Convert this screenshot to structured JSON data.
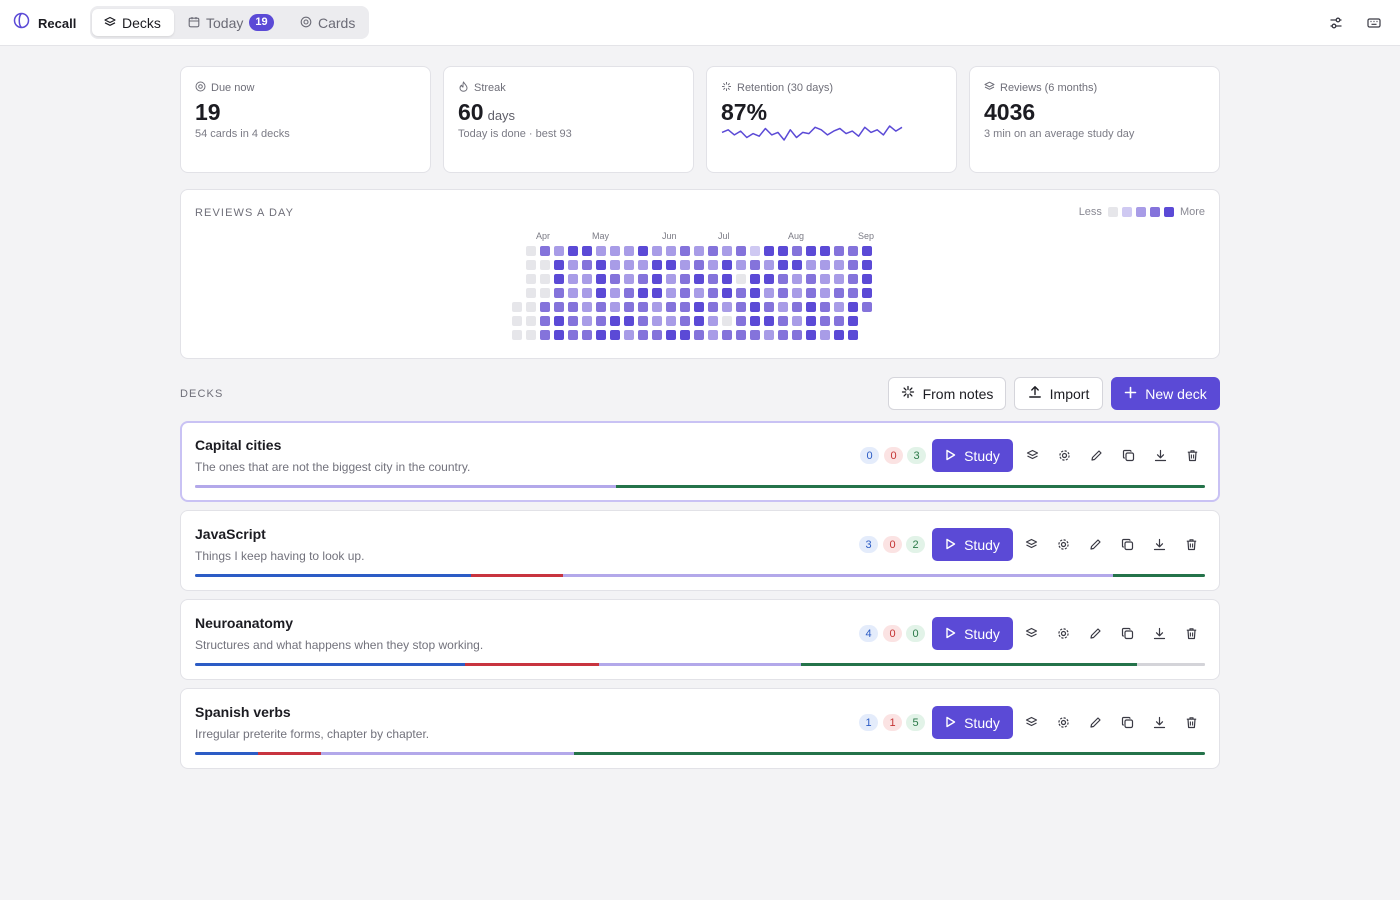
{
  "app": {
    "name": "Recall"
  },
  "tabs": [
    {
      "label": "Decks",
      "active": true
    },
    {
      "label": "Today",
      "badge": "19",
      "active": false
    },
    {
      "label": "Cards",
      "active": false
    }
  ],
  "stats": [
    {
      "icon": "target-icon",
      "label": "Due now",
      "value": "19",
      "unit": "",
      "sub": "54 cards in 4 decks"
    },
    {
      "icon": "flame-icon",
      "label": "Streak",
      "value": "60",
      "unit": "days",
      "sub": "Today is done · best 93"
    },
    {
      "icon": "sparkle-icon",
      "label": "Retention (30 days)",
      "value": "87%",
      "unit": "",
      "sub": "",
      "sparkline": [
        88,
        90,
        86,
        89,
        84,
        87,
        85,
        91,
        86,
        88,
        82,
        90,
        84,
        88,
        87,
        92,
        90,
        86,
        89,
        91,
        87,
        89,
        85,
        92,
        88,
        90,
        86,
        93,
        89,
        92
      ]
    },
    {
      "icon": "layers-icon",
      "label": "Reviews (6 months)",
      "value": "4036",
      "unit": "",
      "sub": "3 min on an average study day"
    }
  ],
  "activity": {
    "title": "REVIEWS A DAY",
    "legend_less": "Less",
    "legend_more": "More",
    "months": [
      "Apr",
      "May",
      "Jun",
      "Jul",
      "Aug",
      "Sep"
    ],
    "month_weeks": [
      2,
      6,
      11,
      15,
      20,
      25
    ],
    "levels": [
      [
        -1,
        0,
        3,
        2,
        4,
        4,
        2,
        2,
        2,
        4,
        2,
        2,
        3,
        2,
        3,
        2,
        3,
        1,
        4,
        4,
        3,
        4,
        4,
        3,
        3,
        4
      ],
      [
        -1,
        0,
        0,
        4,
        2,
        3,
        4,
        2,
        2,
        2,
        4,
        4,
        2,
        3,
        2,
        4,
        2,
        3,
        2,
        4,
        4,
        2,
        2,
        2,
        3,
        4
      ],
      [
        -1,
        0,
        0,
        4,
        2,
        2,
        4,
        3,
        2,
        3,
        4,
        2,
        3,
        4,
        3,
        4,
        0,
        4,
        4,
        3,
        2,
        3,
        2,
        2,
        3,
        4
      ],
      [
        -1,
        0,
        0,
        3,
        2,
        2,
        4,
        2,
        3,
        4,
        4,
        2,
        3,
        2,
        3,
        4,
        3,
        4,
        2,
        3,
        2,
        3,
        2,
        3,
        3,
        4
      ],
      [
        0,
        0,
        3,
        3,
        3,
        2,
        3,
        2,
        3,
        3,
        2,
        3,
        3,
        4,
        3,
        2,
        3,
        4,
        3,
        2,
        3,
        4,
        3,
        2,
        4,
        3
      ],
      [
        0,
        0,
        3,
        4,
        3,
        2,
        3,
        4,
        4,
        3,
        2,
        2,
        3,
        4,
        2,
        0,
        3,
        4,
        4,
        3,
        2,
        4,
        3,
        3,
        4,
        -1
      ],
      [
        0,
        0,
        3,
        4,
        3,
        3,
        4,
        4,
        2,
        3,
        3,
        4,
        4,
        3,
        2,
        3,
        3,
        3,
        2,
        3,
        3,
        4,
        2,
        4,
        4,
        -1
      ]
    ]
  },
  "decks_section": {
    "title": "DECKS",
    "from_notes_label": "From notes",
    "import_label": "Import",
    "new_deck_label": "New deck"
  },
  "decks": [
    {
      "name": "Capital cities",
      "description": "The ones that are not the biggest city in the country.",
      "new": "0",
      "learning": "0",
      "due": "3",
      "selected": true,
      "progress": {
        "new": 0,
        "learning": 0,
        "young": 0.417,
        "mature": 0.583,
        "unseen": 0
      }
    },
    {
      "name": "JavaScript",
      "description": "Things I keep having to look up.",
      "new": "3",
      "learning": "0",
      "due": "2",
      "selected": false,
      "progress": {
        "new": 0.273,
        "learning": 0.091,
        "young": 0.545,
        "mature": 0.091,
        "unseen": 0
      }
    },
    {
      "name": "Neuroanatomy",
      "description": "Structures and what happens when they stop working.",
      "new": "4",
      "learning": "0",
      "due": "0",
      "selected": false,
      "progress": {
        "new": 0.267,
        "learning": 0.133,
        "young": 0.2,
        "mature": 0.333,
        "unseen": 0.067
      }
    },
    {
      "name": "Spanish verbs",
      "description": "Irregular preterite forms, chapter by chapter.",
      "new": "1",
      "learning": "1",
      "due": "5",
      "selected": false,
      "progress": {
        "new": 0.0625,
        "learning": 0.0625,
        "young": 0.25,
        "mature": 0.625,
        "unseen": 0
      }
    }
  ],
  "study_label": "Study",
  "colors": {
    "accent": "#5b4ad6",
    "new": "#2c5cc5",
    "learning": "#c8343f",
    "young": "#b3a8ea",
    "mature": "#24734a",
    "unseen": "#d4d4d9",
    "heat": [
      "#e6e6ea",
      "#cfc9f2",
      "#a89ce7",
      "#8473db",
      "#5b4ad6"
    ]
  }
}
